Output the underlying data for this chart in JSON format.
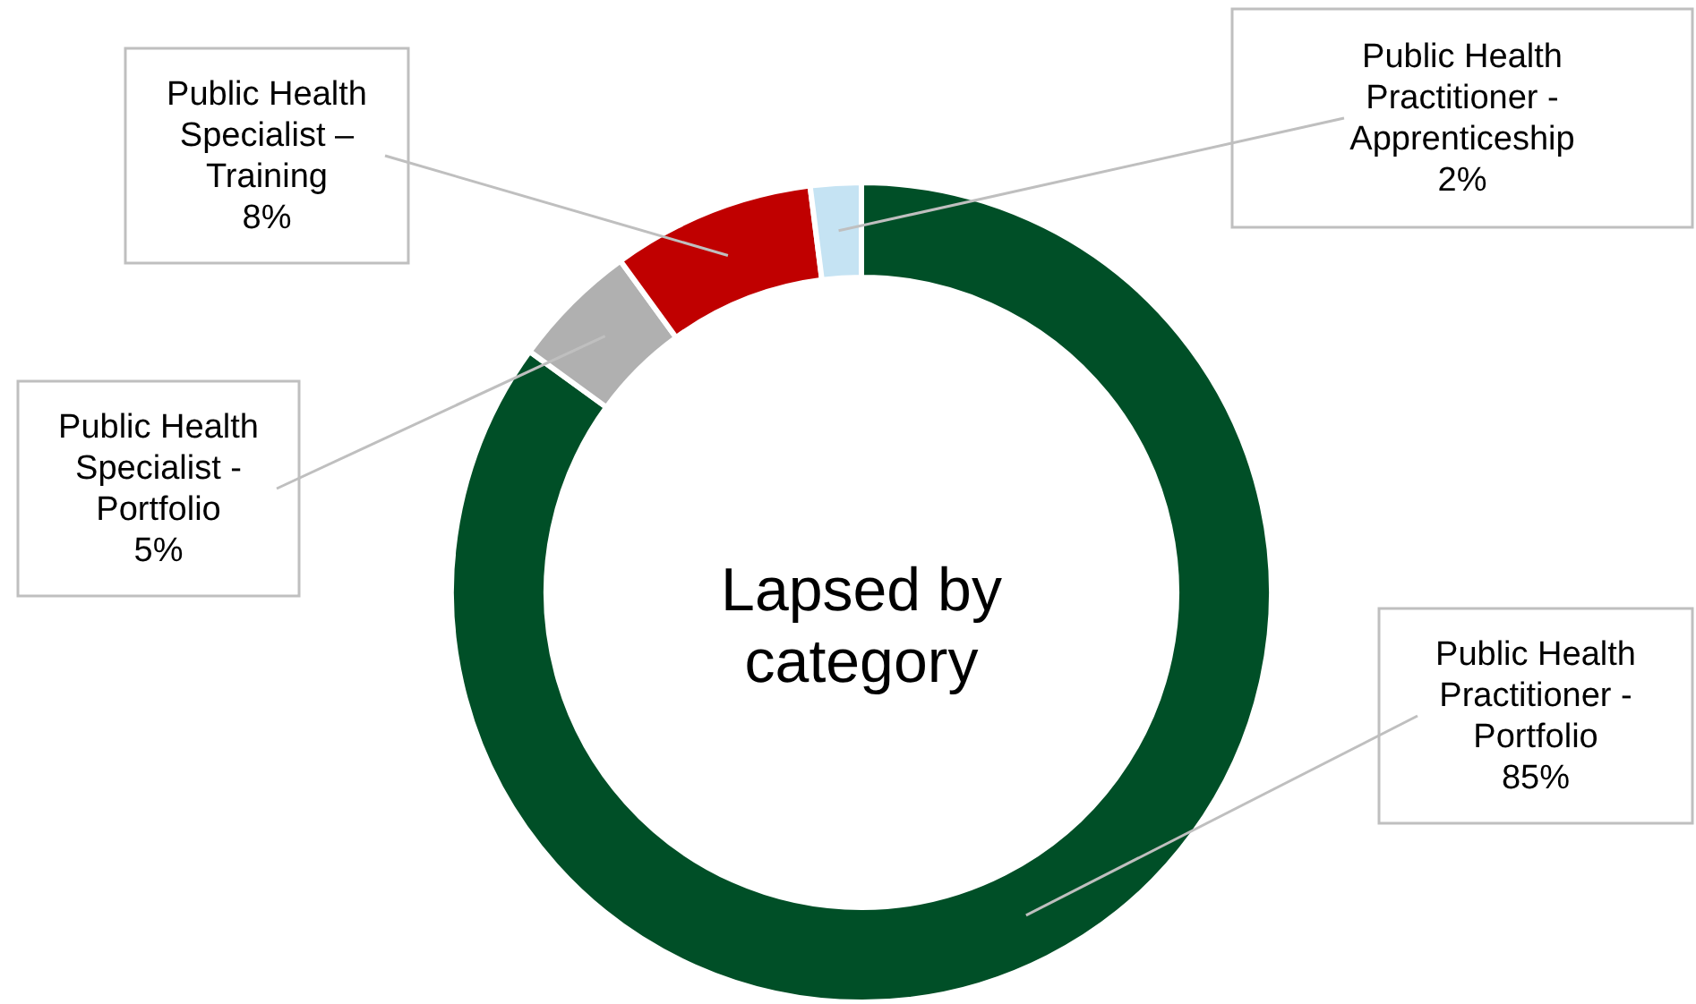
{
  "chart_data": {
    "type": "donut",
    "title": "Lapsed by category",
    "categories": [
      "Public Health Practitioner - Portfolio",
      "Public Health Specialist - Portfolio",
      "Public Health Specialist – Training",
      "Public Health Practitioner - Apprenticeship"
    ],
    "values": [
      85,
      5,
      8,
      2
    ],
    "colors": [
      "#004f27",
      "#b0b0b0",
      "#c00000",
      "#c5e3f3"
    ],
    "value_labels": [
      "85%",
      "5%",
      "8%",
      "2%"
    ]
  }
}
